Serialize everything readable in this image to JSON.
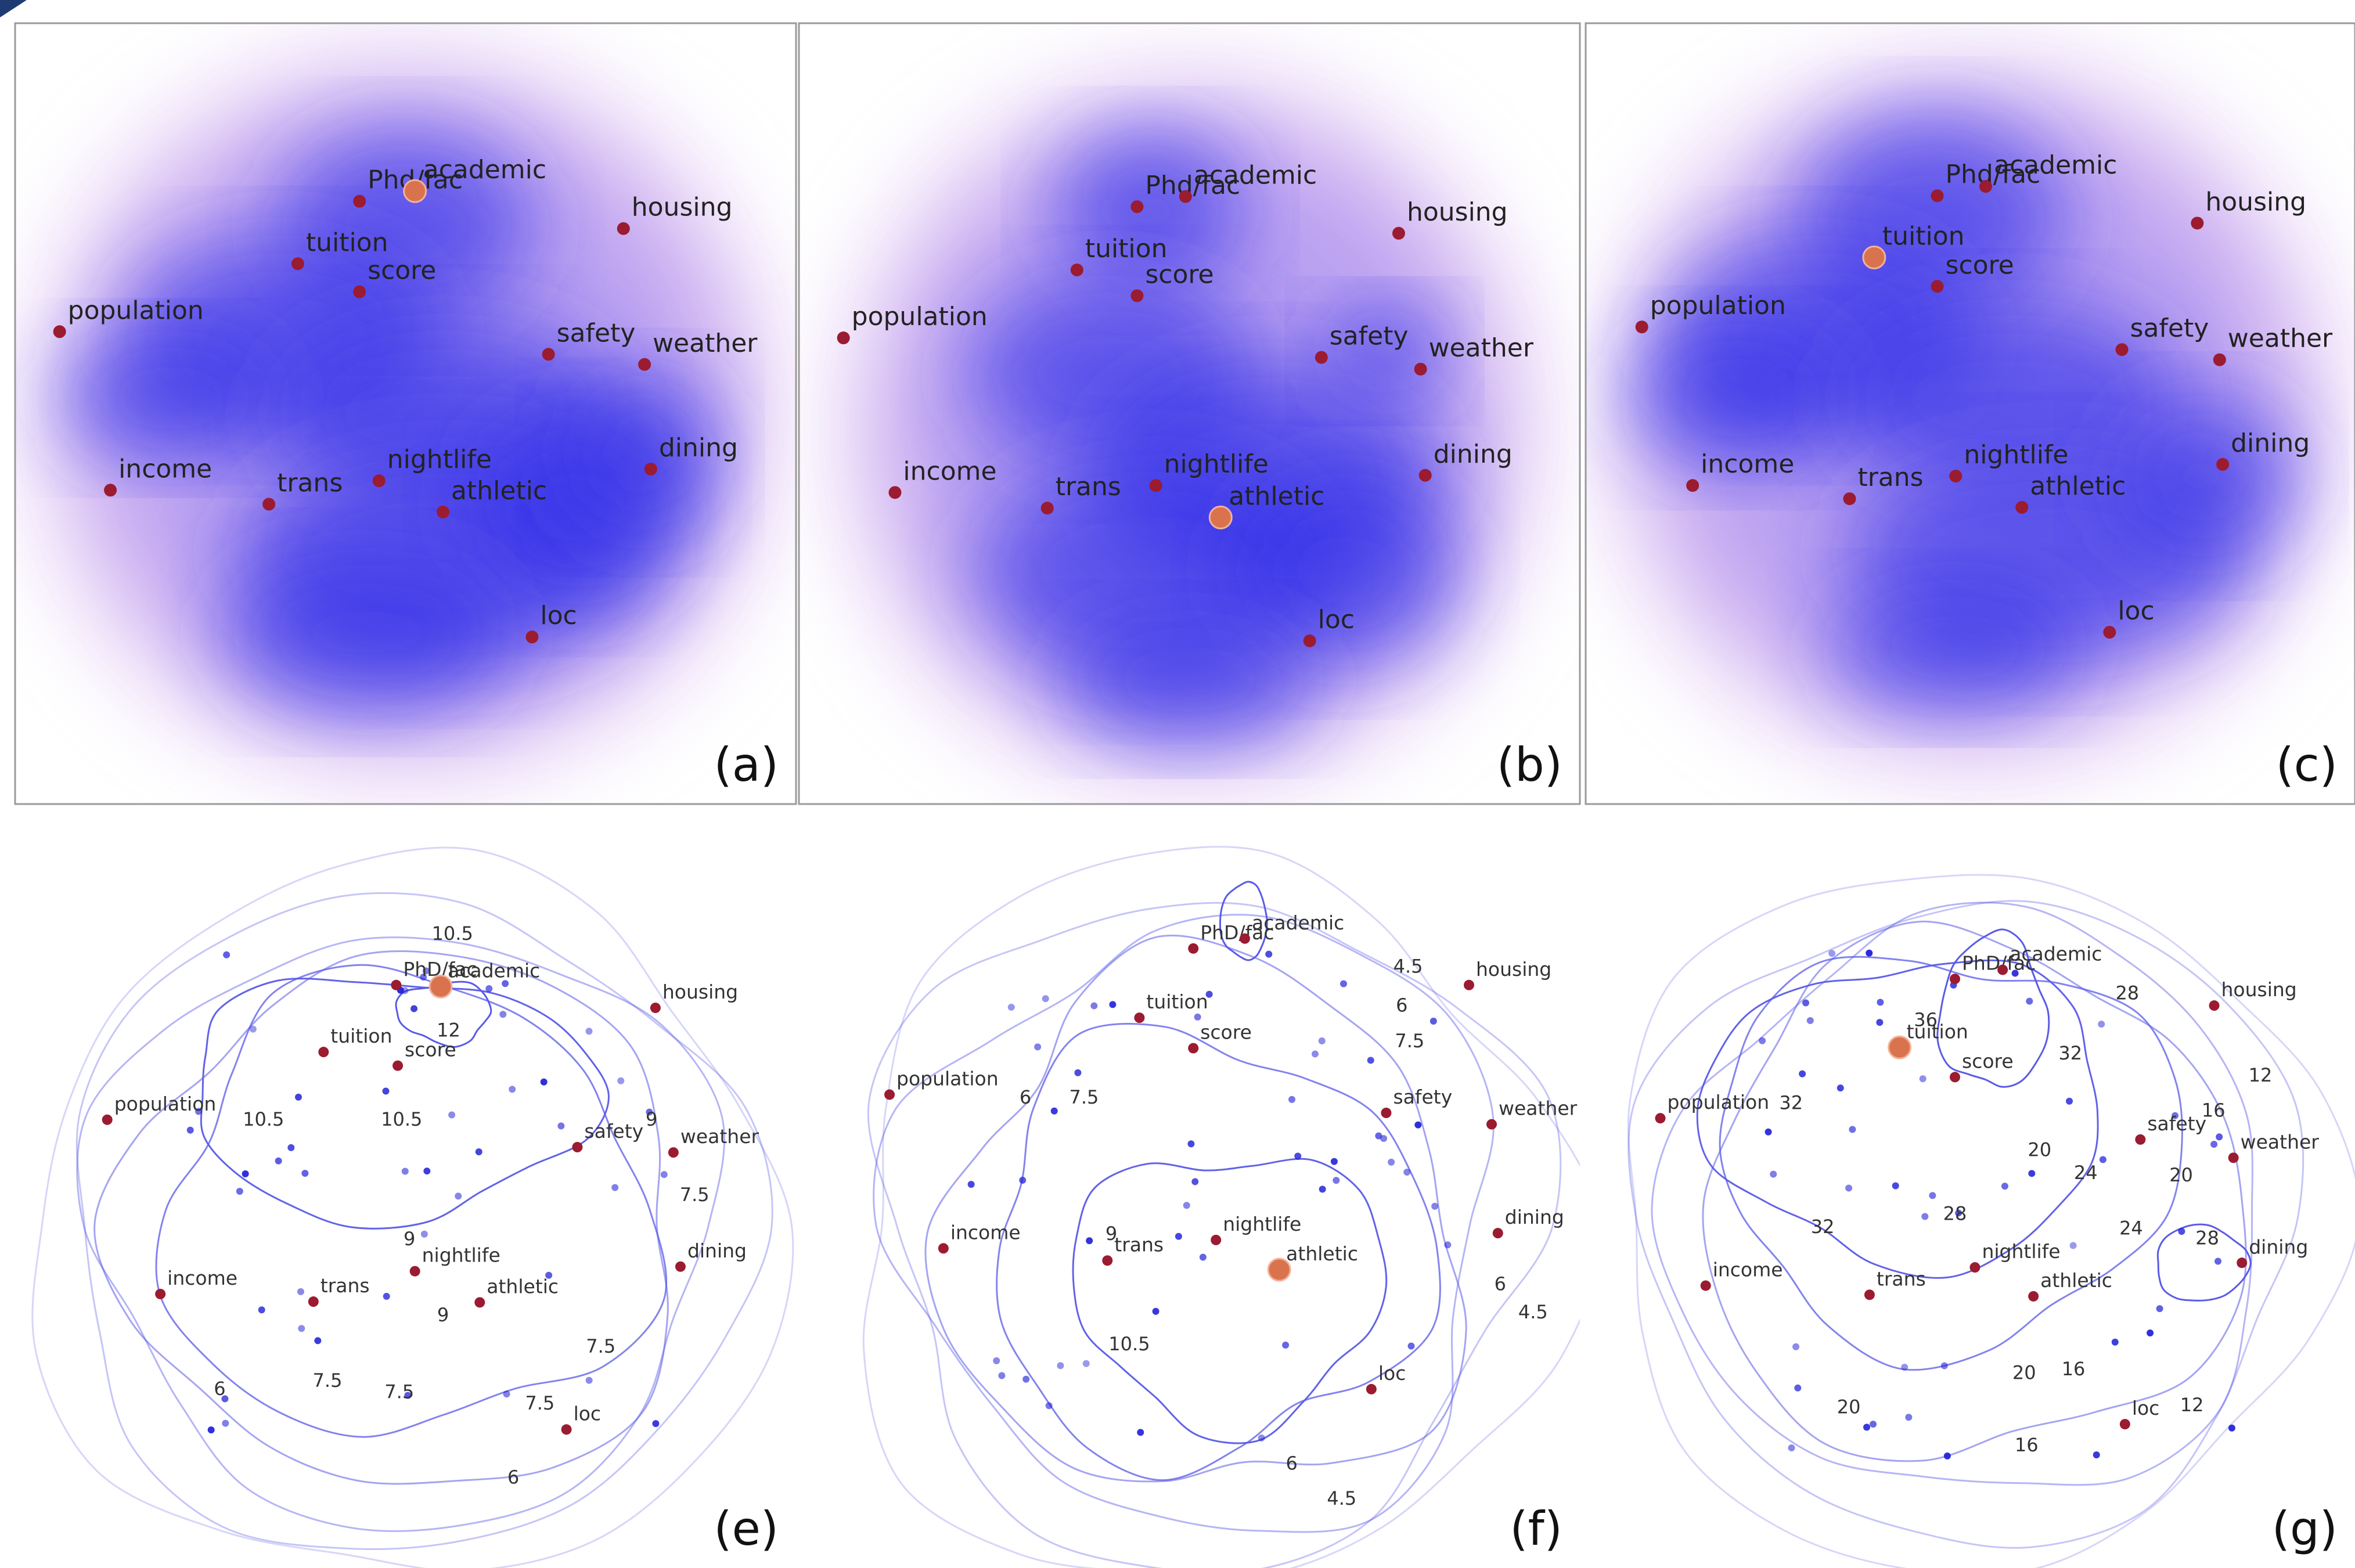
{
  "colors": {
    "attribute_point": "#9b1b30",
    "selected_point": "#d9734e",
    "heat": "#2a2ae8",
    "heat_halo": "#c58ae6",
    "contour": "#5a5ae8",
    "sample_point": "#2020d8"
  },
  "panels": [
    {
      "kind": "heatmap",
      "letter": "(a)",
      "selected": "academic",
      "attributes": [
        {
          "label": "Phd/fac",
          "x": 0.441,
          "y": 0.228
        },
        {
          "label": "academic",
          "x": 0.512,
          "y": 0.215
        },
        {
          "label": "tuition",
          "x": 0.362,
          "y": 0.308
        },
        {
          "label": "score",
          "x": 0.441,
          "y": 0.344
        },
        {
          "label": "housing",
          "x": 0.779,
          "y": 0.263
        },
        {
          "label": "population",
          "x": 0.057,
          "y": 0.395
        },
        {
          "label": "safety",
          "x": 0.683,
          "y": 0.424
        },
        {
          "label": "weather",
          "x": 0.806,
          "y": 0.437
        },
        {
          "label": "nightlife",
          "x": 0.466,
          "y": 0.586
        },
        {
          "label": "dining",
          "x": 0.814,
          "y": 0.571
        },
        {
          "label": "income",
          "x": 0.122,
          "y": 0.598
        },
        {
          "label": "trans",
          "x": 0.325,
          "y": 0.616
        },
        {
          "label": "athletic",
          "x": 0.548,
          "y": 0.626
        },
        {
          "label": "loc",
          "x": 0.662,
          "y": 0.786
        }
      ]
    },
    {
      "kind": "heatmap",
      "letter": "(b)",
      "selected": "athletic",
      "attributes": [
        {
          "label": "Phd/fac",
          "x": 0.433,
          "y": 0.235
        },
        {
          "label": "academic",
          "x": 0.495,
          "y": 0.222
        },
        {
          "label": "tuition",
          "x": 0.356,
          "y": 0.316
        },
        {
          "label": "score",
          "x": 0.433,
          "y": 0.349
        },
        {
          "label": "housing",
          "x": 0.768,
          "y": 0.269
        },
        {
          "label": "population",
          "x": 0.057,
          "y": 0.403
        },
        {
          "label": "safety",
          "x": 0.669,
          "y": 0.428
        },
        {
          "label": "weather",
          "x": 0.796,
          "y": 0.443
        },
        {
          "label": "nightlife",
          "x": 0.457,
          "y": 0.592
        },
        {
          "label": "dining",
          "x": 0.802,
          "y": 0.579
        },
        {
          "label": "income",
          "x": 0.123,
          "y": 0.601
        },
        {
          "label": "trans",
          "x": 0.318,
          "y": 0.621
        },
        {
          "label": "athletic",
          "x": 0.54,
          "y": 0.633
        },
        {
          "label": "loc",
          "x": 0.654,
          "y": 0.791
        }
      ]
    },
    {
      "kind": "heatmap",
      "letter": "(c)",
      "selected": "tuition",
      "attributes": [
        {
          "label": "Phd/fac",
          "x": 0.457,
          "y": 0.221
        },
        {
          "label": "academic",
          "x": 0.52,
          "y": 0.209
        },
        {
          "label": "tuition",
          "x": 0.375,
          "y": 0.3
        },
        {
          "label": "score",
          "x": 0.457,
          "y": 0.337
        },
        {
          "label": "housing",
          "x": 0.795,
          "y": 0.256
        },
        {
          "label": "population",
          "x": 0.073,
          "y": 0.389
        },
        {
          "label": "safety",
          "x": 0.697,
          "y": 0.418
        },
        {
          "label": "weather",
          "x": 0.824,
          "y": 0.431
        },
        {
          "label": "nightlife",
          "x": 0.481,
          "y": 0.58
        },
        {
          "label": "dining",
          "x": 0.828,
          "y": 0.565
        },
        {
          "label": "income",
          "x": 0.139,
          "y": 0.592
        },
        {
          "label": "trans",
          "x": 0.343,
          "y": 0.609
        },
        {
          "label": "athletic",
          "x": 0.567,
          "y": 0.62
        },
        {
          "label": "loc",
          "x": 0.681,
          "y": 0.78
        }
      ]
    },
    {
      "kind": "contour",
      "letter": "(e)",
      "selected": "academic",
      "attributes": [
        {
          "label": "PhD/fac",
          "x": 0.488,
          "y": 0.234
        },
        {
          "label": "academic",
          "x": 0.545,
          "y": 0.236
        },
        {
          "label": "housing",
          "x": 0.82,
          "y": 0.264
        },
        {
          "label": "tuition",
          "x": 0.395,
          "y": 0.322
        },
        {
          "label": "score",
          "x": 0.49,
          "y": 0.34
        },
        {
          "label": "population",
          "x": 0.118,
          "y": 0.411
        },
        {
          "label": "safety",
          "x": 0.72,
          "y": 0.447
        },
        {
          "label": "weather",
          "x": 0.843,
          "y": 0.454
        },
        {
          "label": "nightlife",
          "x": 0.512,
          "y": 0.61
        },
        {
          "label": "dining",
          "x": 0.852,
          "y": 0.604
        },
        {
          "label": "income",
          "x": 0.186,
          "y": 0.64
        },
        {
          "label": "trans",
          "x": 0.382,
          "y": 0.65
        },
        {
          "label": "athletic",
          "x": 0.595,
          "y": 0.651
        },
        {
          "label": "loc",
          "x": 0.706,
          "y": 0.818
        }
      ],
      "contour_labels": [
        {
          "text": "10.5",
          "x": 0.56,
          "y": 0.168
        },
        {
          "text": "12",
          "x": 0.555,
          "y": 0.295
        },
        {
          "text": "10.5",
          "x": 0.318,
          "y": 0.412
        },
        {
          "text": "10.5",
          "x": 0.495,
          "y": 0.412
        },
        {
          "text": "9",
          "x": 0.815,
          "y": 0.412
        },
        {
          "text": "7.5",
          "x": 0.87,
          "y": 0.511
        },
        {
          "text": "9",
          "x": 0.505,
          "y": 0.569
        },
        {
          "text": "9",
          "x": 0.548,
          "y": 0.669
        },
        {
          "text": "7.5",
          "x": 0.75,
          "y": 0.71
        },
        {
          "text": "7.5",
          "x": 0.4,
          "y": 0.755
        },
        {
          "text": "7.5",
          "x": 0.492,
          "y": 0.77
        },
        {
          "text": "7.5",
          "x": 0.672,
          "y": 0.785
        },
        {
          "text": "6",
          "x": 0.262,
          "y": 0.766
        },
        {
          "text": "6",
          "x": 0.638,
          "y": 0.882
        }
      ]
    },
    {
      "kind": "contour",
      "letter": "(f)",
      "selected": "athletic",
      "attributes": [
        {
          "label": "PhD/fac",
          "x": 0.505,
          "y": 0.186
        },
        {
          "label": "academic",
          "x": 0.571,
          "y": 0.173
        },
        {
          "label": "housing",
          "x": 0.858,
          "y": 0.234
        },
        {
          "label": "tuition",
          "x": 0.436,
          "y": 0.277
        },
        {
          "label": "score",
          "x": 0.505,
          "y": 0.317
        },
        {
          "label": "population",
          "x": 0.116,
          "y": 0.378
        },
        {
          "label": "safety",
          "x": 0.752,
          "y": 0.402
        },
        {
          "label": "weather",
          "x": 0.887,
          "y": 0.417
        },
        {
          "label": "nightlife",
          "x": 0.534,
          "y": 0.569
        },
        {
          "label": "dining",
          "x": 0.895,
          "y": 0.56
        },
        {
          "label": "income",
          "x": 0.185,
          "y": 0.58
        },
        {
          "label": "trans",
          "x": 0.395,
          "y": 0.596
        },
        {
          "label": "athletic",
          "x": 0.615,
          "y": 0.608
        },
        {
          "label": "loc",
          "x": 0.733,
          "y": 0.765
        }
      ],
      "contour_labels": [
        {
          "text": "4.5",
          "x": 0.78,
          "y": 0.211
        },
        {
          "text": "6",
          "x": 0.772,
          "y": 0.262
        },
        {
          "text": "7.5",
          "x": 0.782,
          "y": 0.309
        },
        {
          "text": "6",
          "x": 0.29,
          "y": 0.383
        },
        {
          "text": "7.5",
          "x": 0.365,
          "y": 0.383
        },
        {
          "text": "9",
          "x": 0.4,
          "y": 0.562
        },
        {
          "text": "10.5",
          "x": 0.423,
          "y": 0.707
        },
        {
          "text": "6",
          "x": 0.898,
          "y": 0.628
        },
        {
          "text": "4.5",
          "x": 0.94,
          "y": 0.665
        },
        {
          "text": "6",
          "x": 0.631,
          "y": 0.864
        },
        {
          "text": "4.5",
          "x": 0.695,
          "y": 0.91
        }
      ]
    },
    {
      "kind": "contour",
      "letter": "(g)",
      "selected": "tuition",
      "attributes": [
        {
          "label": "PhD/fac",
          "x": 0.48,
          "y": 0.226
        },
        {
          "label": "academic",
          "x": 0.542,
          "y": 0.214
        },
        {
          "label": "housing",
          "x": 0.817,
          "y": 0.261
        },
        {
          "label": "tuition",
          "x": 0.408,
          "y": 0.316
        },
        {
          "label": "score",
          "x": 0.48,
          "y": 0.355
        },
        {
          "label": "population",
          "x": 0.097,
          "y": 0.409
        },
        {
          "label": "safety",
          "x": 0.721,
          "y": 0.437
        },
        {
          "label": "weather",
          "x": 0.842,
          "y": 0.461
        },
        {
          "label": "nightlife",
          "x": 0.506,
          "y": 0.605
        },
        {
          "label": "dining",
          "x": 0.853,
          "y": 0.599
        },
        {
          "label": "income",
          "x": 0.156,
          "y": 0.629
        },
        {
          "label": "trans",
          "x": 0.369,
          "y": 0.641
        },
        {
          "label": "athletic",
          "x": 0.582,
          "y": 0.643
        },
        {
          "label": "loc",
          "x": 0.701,
          "y": 0.811
        }
      ],
      "contour_labels": [
        {
          "text": "28",
          "x": 0.704,
          "y": 0.246
        },
        {
          "text": "36",
          "x": 0.442,
          "y": 0.281
        },
        {
          "text": "32",
          "x": 0.63,
          "y": 0.325
        },
        {
          "text": "12",
          "x": 0.877,
          "y": 0.354
        },
        {
          "text": "32",
          "x": 0.267,
          "y": 0.39
        },
        {
          "text": "16",
          "x": 0.816,
          "y": 0.4
        },
        {
          "text": "20",
          "x": 0.59,
          "y": 0.452
        },
        {
          "text": "24",
          "x": 0.65,
          "y": 0.482
        },
        {
          "text": "20",
          "x": 0.774,
          "y": 0.485
        },
        {
          "text": "28",
          "x": 0.48,
          "y": 0.536
        },
        {
          "text": "32",
          "x": 0.308,
          "y": 0.553
        },
        {
          "text": "24",
          "x": 0.709,
          "y": 0.555
        },
        {
          "text": "28",
          "x": 0.808,
          "y": 0.568
        },
        {
          "text": "20",
          "x": 0.57,
          "y": 0.745
        },
        {
          "text": "16",
          "x": 0.634,
          "y": 0.74
        },
        {
          "text": "20",
          "x": 0.342,
          "y": 0.79
        },
        {
          "text": "12",
          "x": 0.788,
          "y": 0.787
        },
        {
          "text": "16",
          "x": 0.573,
          "y": 0.84
        }
      ]
    }
  ]
}
